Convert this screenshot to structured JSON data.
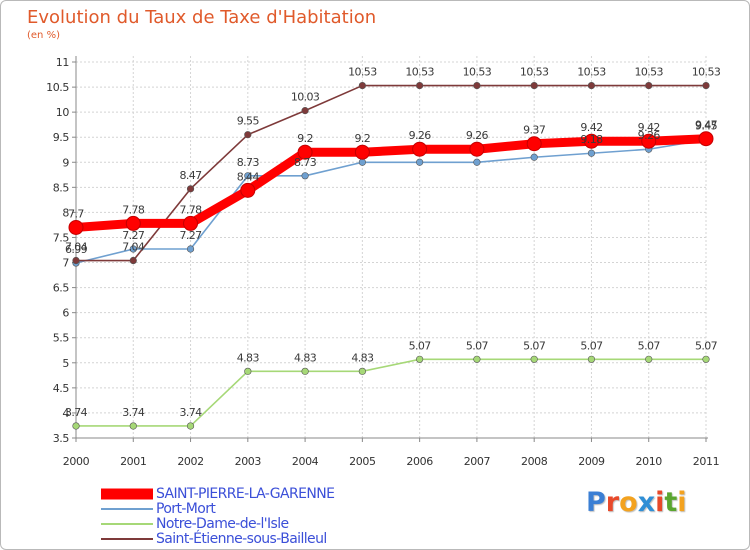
{
  "title": "Evolution du Taux de Taxe d'Habitation",
  "subtitle": "(en %)",
  "logo": {
    "text": "Proxiti",
    "letter_colors": [
      "#3b7fd4",
      "#e8492a",
      "#f3a21f",
      "#2f8fd6",
      "#e8492a",
      "#5aa62f",
      "#f3a21f"
    ]
  },
  "chart_data": {
    "type": "line",
    "title": "Evolution du Taux de Taxe d'Habitation",
    "ylabel": "(en %)",
    "xlabel": "",
    "x": [
      "2000",
      "2001",
      "2002",
      "2003",
      "2004",
      "2005",
      "2006",
      "2007",
      "2008",
      "2009",
      "2010",
      "2011"
    ],
    "ylim": [
      3.5,
      11
    ],
    "yticks": [
      "3.5",
      "4",
      "4.5",
      "5",
      "5.5",
      "6",
      "6.5",
      "7",
      "7.5",
      "8",
      "8.5",
      "9",
      "9.5",
      "10",
      "10.5",
      "11"
    ],
    "grid": true,
    "legend_position": "bottom-left",
    "series": [
      {
        "name": "SAINT-PIERRE-LA-GARENNE",
        "color": "#ff0000",
        "emphasis": true,
        "values": [
          7.7,
          7.78,
          7.78,
          8.44,
          9.2,
          9.2,
          9.26,
          9.26,
          9.37,
          9.42,
          9.42,
          9.47
        ],
        "labels": [
          "7.7",
          "7.78",
          "7.78",
          "8.44",
          "9.2",
          "9.2",
          "9.26",
          "9.26",
          "9.37",
          "9.42",
          "9.42",
          "9.47"
        ]
      },
      {
        "name": "Port-Mort",
        "color": "#6fa0d0",
        "emphasis": false,
        "values": [
          6.99,
          7.27,
          7.27,
          8.73,
          8.73,
          9.0,
          9.0,
          9.0,
          9.1,
          9.18,
          9.26,
          9.45
        ],
        "labels": [
          "6.99",
          "7.27",
          "7.27",
          "8.73",
          "8.73",
          "",
          "",
          "",
          "",
          "9.18",
          "9.26",
          "9.45"
        ]
      },
      {
        "name": "Notre-Dame-de-l'Isle",
        "color": "#a6d877",
        "emphasis": false,
        "values": [
          3.74,
          3.74,
          3.74,
          4.83,
          4.83,
          4.83,
          5.07,
          5.07,
          5.07,
          5.07,
          5.07,
          5.07
        ],
        "labels": [
          "3.74",
          "3.74",
          "3.74",
          "4.83",
          "4.83",
          "4.83",
          "5.07",
          "5.07",
          "5.07",
          "5.07",
          "5.07",
          "5.07"
        ]
      },
      {
        "name": "Saint-Étienne-sous-Bailleul",
        "color": "#7e3a3a",
        "emphasis": false,
        "values": [
          7.04,
          7.04,
          8.47,
          9.55,
          10.03,
          10.53,
          10.53,
          10.53,
          10.53,
          10.53,
          10.53,
          10.53
        ],
        "labels": [
          "7.04",
          "7.04",
          "8.47",
          "9.55",
          "10.03",
          "10.53",
          "10.53",
          "10.53",
          "10.53",
          "10.53",
          "10.53",
          "10.53"
        ]
      }
    ]
  }
}
